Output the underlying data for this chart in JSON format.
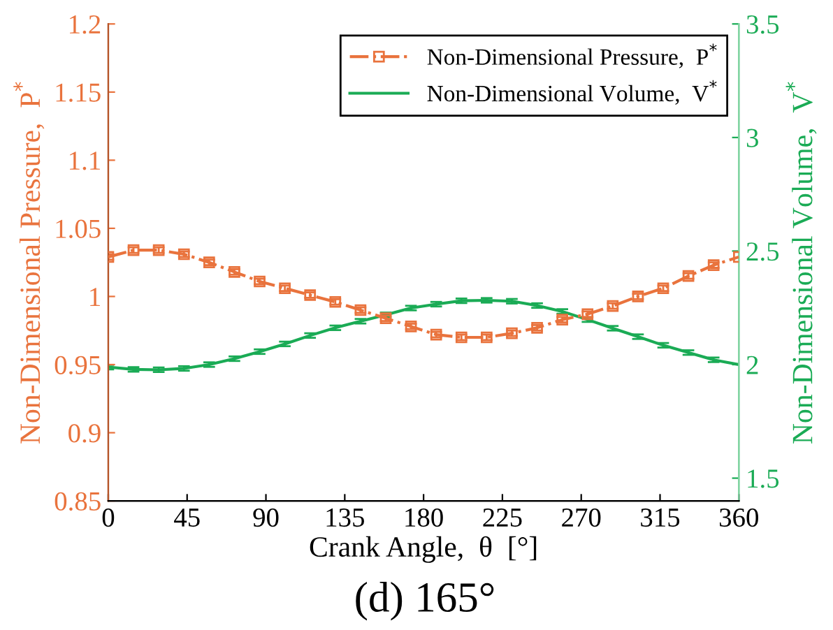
{
  "chart_data": {
    "type": "line",
    "title": "(d) 165°",
    "xlabel": "Crank Angle,  θ  [°]",
    "ylabel": "Non-Dimensional Pressure,  P$^{*}$",
    "y2label": "Non-Dimensional Volume,  V$^{*}$",
    "xlim": [
      0,
      360
    ],
    "xticks": [
      0,
      45,
      90,
      135,
      180,
      225,
      270,
      315,
      360
    ],
    "ylim": [
      0.85,
      1.2
    ],
    "yticks": [
      0.85,
      0.9,
      0.95,
      1,
      1.05,
      1.1,
      1.15,
      1.2
    ],
    "y2lim": [
      1.4,
      3.5
    ],
    "y2ticks": [
      1.5,
      2,
      2.5,
      3,
      3.5
    ],
    "x": [
      0,
      14.4,
      28.8,
      43.2,
      57.6,
      72,
      86.4,
      100.8,
      115.2,
      129.6,
      144,
      158.4,
      172.8,
      187.2,
      201.6,
      216,
      230.4,
      244.8,
      259.2,
      273.6,
      288,
      302.4,
      316.8,
      331.2,
      345.6,
      360
    ],
    "series": [
      {
        "name": "Non-Dimensional Pressure,  P$^{*}$",
        "color": "#e9733d",
        "axis": "y",
        "marker": "square",
        "line_style": "dashdot",
        "values": [
          1.029,
          1.034,
          1.034,
          1.031,
          1.025,
          1.018,
          1.011,
          1.006,
          1.001,
          0.996,
          0.99,
          0.984,
          0.978,
          0.972,
          0.97,
          0.97,
          0.973,
          0.977,
          0.983,
          0.987,
          0.993,
          1.0,
          1.006,
          1.015,
          1.023,
          1.029
        ],
        "errors": [
          0.002,
          0.002,
          0.002,
          0.002,
          0.002,
          0.002,
          0.002,
          0.002,
          0.002,
          0.002,
          0.002,
          0.002,
          0.002,
          0.002,
          0.002,
          0.002,
          0.002,
          0.002,
          0.002,
          0.002,
          0.002,
          0.002,
          0.002,
          0.002,
          0.002,
          null
        ]
      },
      {
        "name": "Non-Dimensional Volume,  V$^{*}$",
        "color": "#1aab55",
        "axis": "y2",
        "marker": "none",
        "line_style": "solid",
        "values": [
          1.989,
          1.979,
          1.977,
          1.983,
          2.0,
          2.026,
          2.057,
          2.091,
          2.128,
          2.162,
          2.191,
          2.219,
          2.249,
          2.266,
          2.281,
          2.283,
          2.279,
          2.26,
          2.234,
          2.198,
          2.16,
          2.123,
          2.085,
          2.053,
          2.021,
          2.0
        ],
        "errors": [
          0.01,
          0.01,
          0.01,
          0.01,
          0.01,
          0.01,
          0.01,
          0.01,
          0.01,
          0.01,
          0.01,
          0.01,
          0.01,
          0.01,
          0.01,
          0.01,
          0.01,
          0.01,
          0.01,
          0.01,
          0.01,
          0.01,
          0.01,
          0.01,
          0.01,
          null
        ]
      }
    ],
    "legend": "top right",
    "grid": false
  }
}
